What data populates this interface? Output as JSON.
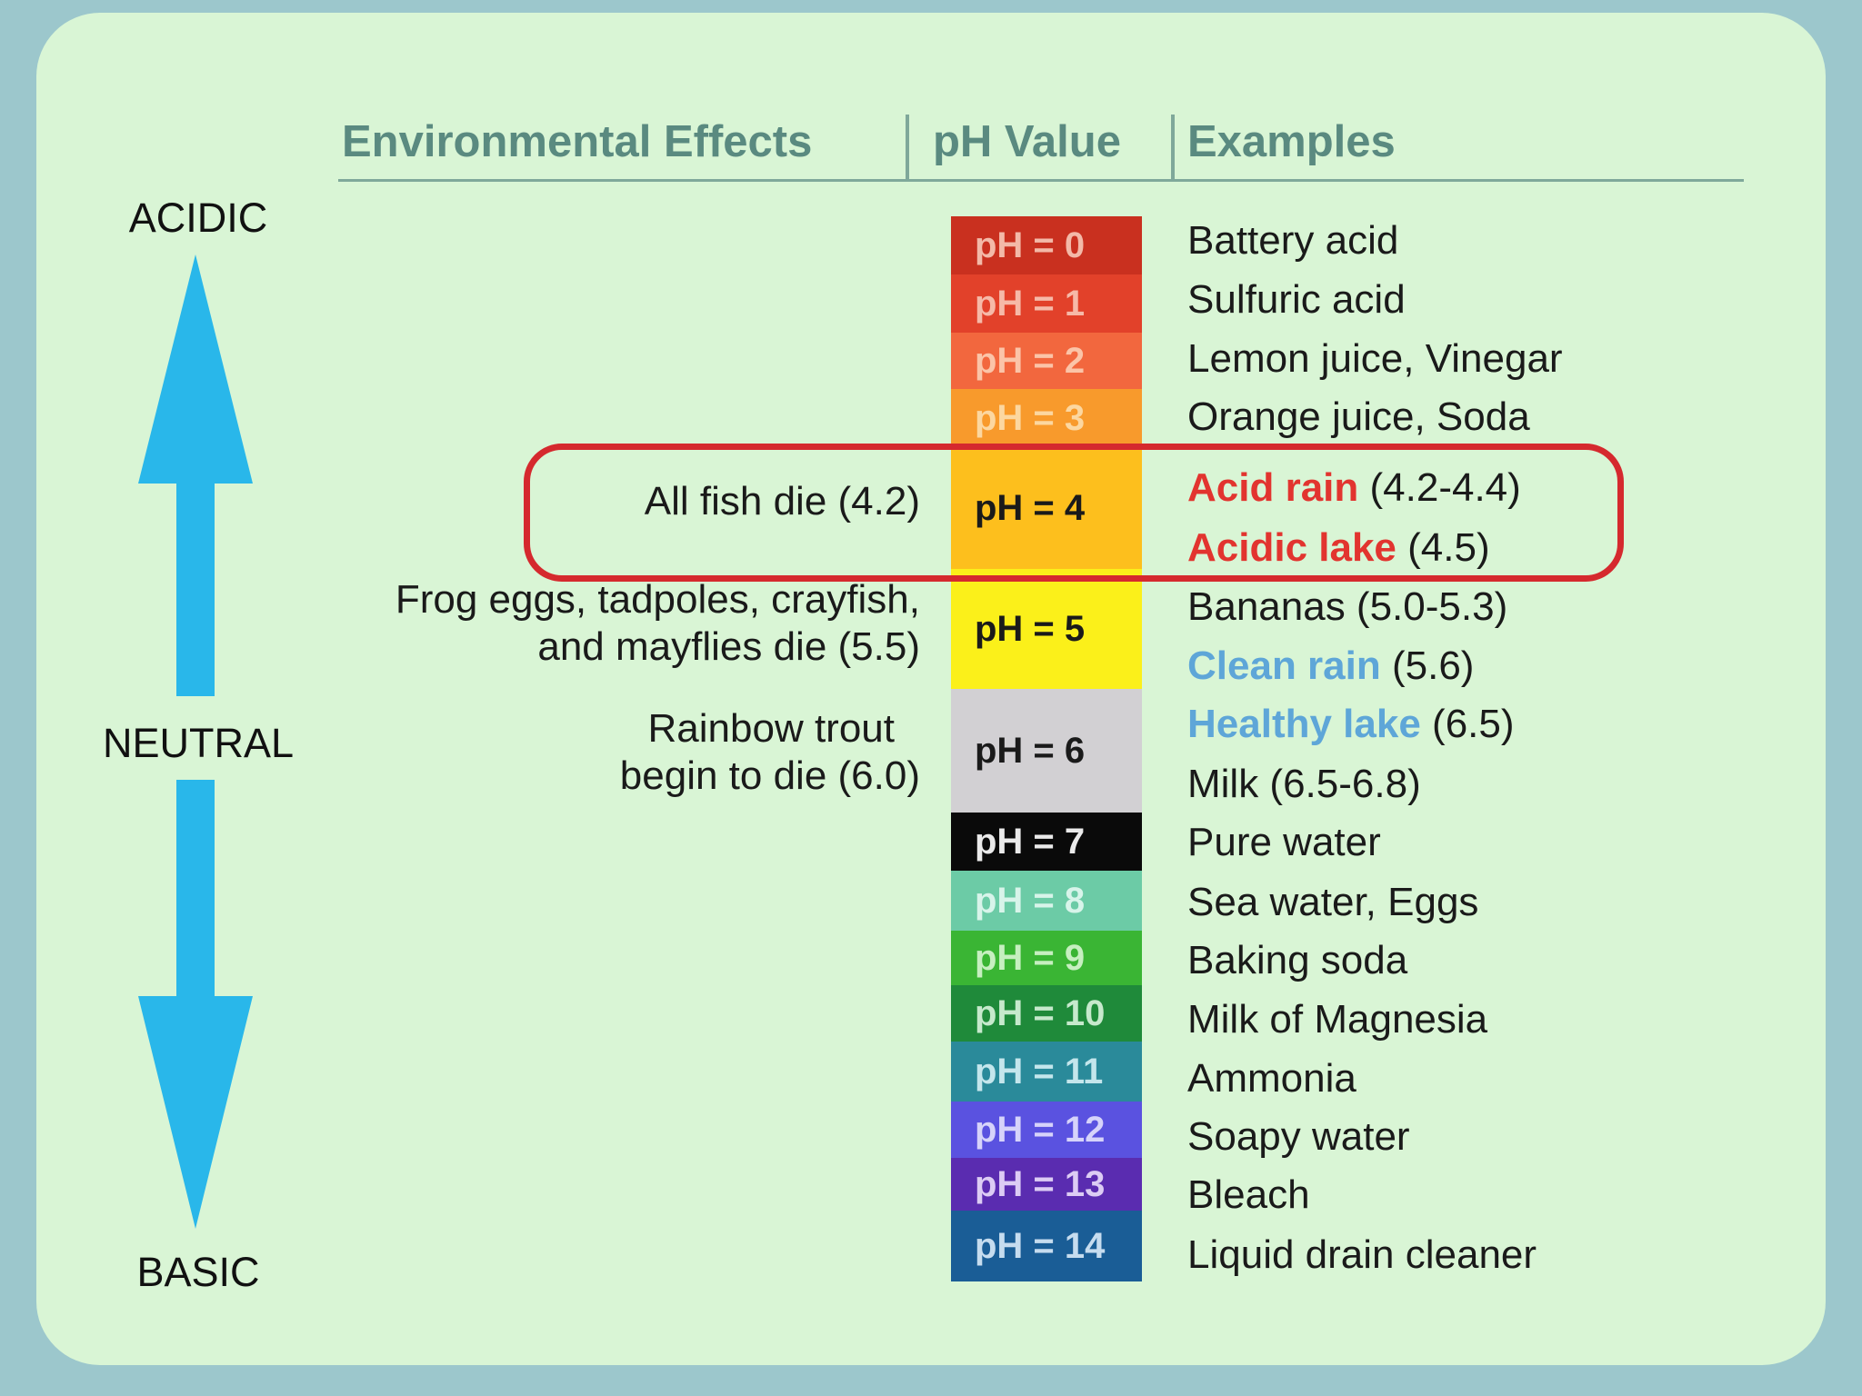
{
  "headers": {
    "effects": "Environmental Effects",
    "ph_value": "pH Value",
    "examples": "Examples"
  },
  "axis": {
    "top": "ACIDIC",
    "middle": "NEUTRAL",
    "bottom": "BASIC",
    "arrow_color": "#29b7ea"
  },
  "scale": [
    {
      "label": "pH = 0",
      "color": "#c9301f",
      "text_color": "#f3b9a8"
    },
    {
      "label": "pH = 1",
      "color": "#e2412a",
      "text_color": "#f6b9a8"
    },
    {
      "label": "pH = 2",
      "color": "#f2673e",
      "text_color": "#fbc4a8"
    },
    {
      "label": "pH = 3",
      "color": "#f89a2c",
      "text_color": "#fcd7a0"
    },
    {
      "label": "pH = 4",
      "color": "#fdbf1d",
      "text_color": "#1a1a1a"
    },
    {
      "label": "pH = 5",
      "color": "#fbf01a",
      "text_color": "#1a1a1a"
    },
    {
      "label": "pH = 6",
      "color": "#d2d0d3",
      "text_color": "#1a1a1a"
    },
    {
      "label": "pH = 7",
      "color": "#0a0a0a",
      "text_color": "#eaeaea"
    },
    {
      "label": "pH = 8",
      "color": "#6ccba6",
      "text_color": "#d8f4ea"
    },
    {
      "label": "pH = 9",
      "color": "#3ab534",
      "text_color": "#c6efc0"
    },
    {
      "label": "pH = 10",
      "color": "#1f8a3a",
      "text_color": "#c6e9cc"
    },
    {
      "label": "pH = 11",
      "color": "#2a8a9a",
      "text_color": "#c4e6ec"
    },
    {
      "label": "pH = 12",
      "color": "#5a52e0",
      "text_color": "#d6d3fa"
    },
    {
      "label": "pH = 13",
      "color": "#5a2cb0",
      "text_color": "#dcccf4"
    },
    {
      "label": "pH = 14",
      "color": "#1a5d96",
      "text_color": "#c6dcef"
    }
  ],
  "examples": [
    {
      "pre": "Battery acid",
      "hl": "",
      "post": "",
      "style": ""
    },
    {
      "pre": "Sulfuric acid",
      "hl": "",
      "post": "",
      "style": ""
    },
    {
      "pre": "Lemon juice, Vinegar",
      "hl": "",
      "post": "",
      "style": ""
    },
    {
      "pre": "Orange juice, Soda",
      "hl": "",
      "post": "",
      "style": ""
    },
    {
      "pre": "",
      "hl": "Acid rain",
      "post": " (4.2-4.4)",
      "style": "red"
    },
    {
      "pre": "",
      "hl": "Acidic lake",
      "post": " (4.5)",
      "style": "red"
    },
    {
      "pre": "Bananas (5.0-5.3)",
      "hl": "",
      "post": "",
      "style": ""
    },
    {
      "pre": "",
      "hl": "Clean rain",
      "post": " (5.6)",
      "style": "blue"
    },
    {
      "pre": "",
      "hl": "Healthy lake",
      "post": " (6.5)",
      "style": "blue"
    },
    {
      "pre": "Milk (6.5-6.8)",
      "hl": "",
      "post": "",
      "style": ""
    },
    {
      "pre": "Pure water",
      "hl": "",
      "post": "",
      "style": ""
    },
    {
      "pre": "Sea water, Eggs",
      "hl": "",
      "post": "",
      "style": ""
    },
    {
      "pre": "Baking soda",
      "hl": "",
      "post": "",
      "style": ""
    },
    {
      "pre": "Milk of Magnesia",
      "hl": "",
      "post": "",
      "style": ""
    },
    {
      "pre": "Ammonia",
      "hl": "",
      "post": "",
      "style": ""
    },
    {
      "pre": "Soapy water",
      "hl": "",
      "post": "",
      "style": ""
    },
    {
      "pre": "Bleach",
      "hl": "",
      "post": "",
      "style": ""
    },
    {
      "pre": "Liquid drain cleaner",
      "hl": "",
      "post": "",
      "style": ""
    }
  ],
  "effects": [
    {
      "lines": [
        "All fish die (4.2)"
      ]
    },
    {
      "lines": [
        "Frog eggs, tadpoles, crayfish,",
        "and mayflies die (5.5)"
      ]
    },
    {
      "lines": [
        "Rainbow trout",
        "begin to die (6.0)"
      ]
    }
  ],
  "highlight_color": "#d5292e"
}
